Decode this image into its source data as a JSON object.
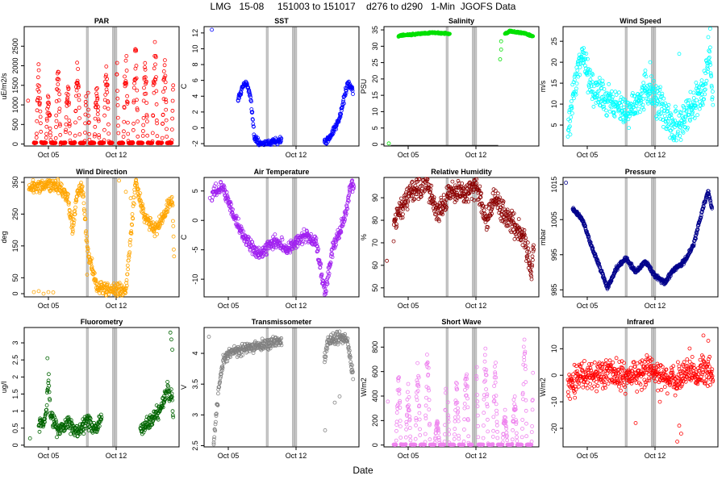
{
  "title": "LMG   15-08     151003 to 151017    d276 to d290   1-Min  JGOFS Data",
  "xlabel": "Date",
  "chart_data": [
    {
      "type": "scatter",
      "title": "PAR",
      "ylabel": "uE/m2/s",
      "color": "#ff0000",
      "ylim": [
        -50,
        3000
      ],
      "yticks": [
        0,
        500,
        1000,
        1500,
        2000,
        2500
      ],
      "xticks": [
        "Oct 05",
        "Oct 12"
      ],
      "pattern": "diurnal",
      "params": {
        "peaks": [
          2050,
          1350,
          2000,
          1800,
          2550,
          2000,
          1650,
          2400,
          2950,
          2500,
          2700,
          2200,
          2800,
          2200
        ],
        "base": 20
      }
    },
    {
      "type": "scatter",
      "title": "SST",
      "ylabel": "C",
      "color": "#0000ff",
      "ylim": [
        -2.3,
        12.8
      ],
      "yticks": [
        -2,
        0,
        2,
        4,
        6,
        8,
        10,
        12
      ],
      "xticks": [
        "Oct 12"
      ],
      "pattern": "series",
      "params": {
        "knots": [
          [
            3.5,
            3.6
          ],
          [
            4.0,
            5.2
          ],
          [
            4.4,
            5.8
          ],
          [
            4.8,
            4.0
          ],
          [
            5.2,
            -1.2
          ],
          [
            5.6,
            -1.9
          ],
          [
            6.2,
            -2.0
          ],
          [
            7.0,
            -1.9
          ],
          [
            7.7,
            -1.6
          ],
          [
            8.0,
            -1.5
          ],
          [
            null
          ],
          [
            12.4,
            -1.8
          ],
          [
            13.0,
            -1.3
          ],
          [
            14.0,
            1.2
          ],
          [
            14.8,
            5.5
          ],
          [
            15.3,
            5.0
          ],
          [
            15.4,
            4.2
          ]
        ],
        "noise": 0.35,
        "outliers": [
          [
            0.8,
            12.4
          ]
        ]
      }
    },
    {
      "type": "scatter",
      "title": "Salinity",
      "ylabel": "PSU",
      "color": "#00e000",
      "ylim": [
        -0.5,
        36
      ],
      "yticks": [
        0,
        5,
        10,
        15,
        20,
        25,
        30,
        35
      ],
      "xticks": [
        "Oct 05",
        "Oct 12"
      ],
      "pattern": "series",
      "params": {
        "knots": [
          [
            1.5,
            33.2
          ],
          [
            3.0,
            33.6
          ],
          [
            5.0,
            34.2
          ],
          [
            6.5,
            33.9
          ],
          [
            6.8,
            33.8
          ],
          [
            null
          ],
          [
            12.5,
            33.8
          ],
          [
            13.0,
            34.6
          ],
          [
            14.5,
            34.0
          ],
          [
            15.4,
            33.0
          ]
        ],
        "noise": 0.2,
        "outliers": [
          [
            0.5,
            0.3
          ],
          [
            12.0,
            26.0
          ],
          [
            12.1,
            29.0
          ],
          [
            12.1,
            31.5
          ]
        ],
        "gapLine": [
          [
            0.7,
            -0.3
          ],
          [
            11.8,
            -0.3
          ]
        ]
      }
    },
    {
      "type": "scatter",
      "title": "Wind Speed",
      "ylabel": "m/s",
      "color": "#00ffff",
      "ylim": [
        0,
        28.5
      ],
      "yticks": [
        5,
        10,
        15,
        20,
        25
      ],
      "xticks": [
        "Oct 05",
        "Oct 12"
      ],
      "pattern": "series",
      "params": {
        "knots": [
          [
            0.5,
            3
          ],
          [
            1.5,
            18
          ],
          [
            2.0,
            22
          ],
          [
            3.0,
            14
          ],
          [
            4.0,
            12
          ],
          [
            5.5,
            10
          ],
          [
            6.5,
            8
          ],
          [
            7.5,
            10
          ],
          [
            8.5,
            14
          ],
          [
            9.5,
            12
          ],
          [
            10.5,
            8
          ],
          [
            11.5,
            4
          ],
          [
            12.5,
            6
          ],
          [
            13.5,
            10
          ],
          [
            14.5,
            14
          ],
          [
            15.2,
            22
          ],
          [
            15.5,
            10
          ]
        ],
        "noise": 3.5,
        "outliers": [
          [
            15.2,
            28
          ],
          [
            15.0,
            26
          ],
          [
            8.5,
            18
          ],
          [
            9.0,
            20
          ],
          [
            12.0,
            22
          ]
        ]
      }
    },
    {
      "type": "scatter",
      "title": "Wind Direction",
      "ylabel": "deg",
      "color": "#ffa500",
      "ylim": [
        -10,
        365
      ],
      "yticks": [
        0,
        50,
        150,
        250,
        350
      ],
      "xticks": [
        "Oct 05",
        "Oct 12"
      ],
      "pattern": "series",
      "params": {
        "knots": [
          [
            0.5,
            330
          ],
          [
            2.0,
            345
          ],
          [
            3.5,
            340
          ],
          [
            4.5,
            300
          ],
          [
            5.0,
            200
          ],
          [
            5.5,
            320
          ],
          [
            6.0,
            340
          ],
          [
            6.5,
            150
          ],
          [
            7.0,
            80
          ],
          [
            7.5,
            20
          ],
          [
            8.5,
            10
          ],
          [
            9.5,
            15
          ],
          [
            10.5,
            10
          ],
          [
            11.5,
            350
          ],
          [
            12.5,
            240
          ],
          [
            13.5,
            200
          ],
          [
            14.5,
            250
          ],
          [
            15.3,
            300
          ],
          [
            15.5,
            100
          ]
        ],
        "noise": 18,
        "outliers": [
          [
            1.0,
            5
          ],
          [
            1.5,
            8
          ],
          [
            2.0,
            0
          ],
          [
            2.5,
            5
          ],
          [
            3.0,
            4
          ],
          [
            10.5,
            320
          ],
          [
            11.0,
            300
          ],
          [
            9.8,
            355
          ],
          [
            6.5,
            60
          ],
          [
            7.0,
            110
          ]
        ]
      }
    },
    {
      "type": "scatter",
      "title": "Air Temperature",
      "ylabel": "C",
      "color": "#a020f0",
      "ylim": [
        -13,
        7.3
      ],
      "yticks": [
        -10,
        -5,
        0,
        5
      ],
      "xticks": [
        "Oct 05",
        "Oct 12"
      ],
      "pattern": "series",
      "params": {
        "knots": [
          [
            0.8,
            4.5
          ],
          [
            1.2,
            5.0
          ],
          [
            2.0,
            5.6
          ],
          [
            3.0,
            1.0
          ],
          [
            4.0,
            -2.5
          ],
          [
            5.0,
            -4.5
          ],
          [
            5.8,
            -6.0
          ],
          [
            6.5,
            -4.5
          ],
          [
            7.5,
            -3.5
          ],
          [
            8.5,
            -5.0
          ],
          [
            9.5,
            -3.5
          ],
          [
            10.5,
            -2.5
          ],
          [
            11.5,
            -3.5
          ],
          [
            12.0,
            -8.0
          ],
          [
            12.5,
            -12.5
          ],
          [
            13.3,
            -5.0
          ],
          [
            14.0,
            -2.0
          ],
          [
            14.6,
            1.0
          ],
          [
            15.2,
            6.5
          ],
          [
            15.5,
            5.5
          ]
        ],
        "noise": 0.9,
        "outliers": [
          [
            0.6,
            3.8
          ]
        ]
      }
    },
    {
      "type": "scatter",
      "title": "Relative Humidity",
      "ylabel": "%",
      "color": "#8b0000",
      "ylim": [
        46,
        99
      ],
      "yticks": [
        50,
        60,
        70,
        80,
        90
      ],
      "xticks": [
        "Oct 05",
        "Oct 12"
      ],
      "pattern": "series",
      "params": {
        "knots": [
          [
            1.0,
            76
          ],
          [
            1.6,
            85
          ],
          [
            2.5,
            90
          ],
          [
            3.5,
            95
          ],
          [
            4.5,
            96
          ],
          [
            5.5,
            82
          ],
          [
            6.5,
            90
          ],
          [
            7.5,
            94
          ],
          [
            8.5,
            92
          ],
          [
            9.5,
            96
          ],
          [
            10.5,
            80
          ],
          [
            11.5,
            90
          ],
          [
            12.5,
            82
          ],
          [
            13.5,
            78
          ],
          [
            14.5,
            72
          ],
          [
            15.2,
            55
          ],
          [
            15.5,
            72
          ]
        ],
        "noise": 4.5,
        "outliers": [
          [
            0.3,
            62
          ]
        ]
      }
    },
    {
      "type": "scatter",
      "title": "Pressure",
      "ylabel": "mbar",
      "color": "#00008b",
      "ylim": [
        983,
        1017
      ],
      "yticks": [
        985,
        995,
        1005,
        1015
      ],
      "xticks": [
        "Oct 05",
        "Oct 12"
      ],
      "pattern": "series",
      "params": {
        "knots": [
          [
            1.0,
            1008
          ],
          [
            2.0,
            1005
          ],
          [
            3.0,
            997
          ],
          [
            4.0,
            990
          ],
          [
            4.6,
            985.5
          ],
          [
            5.5,
            991
          ],
          [
            6.5,
            994
          ],
          [
            7.5,
            990
          ],
          [
            8.5,
            993
          ],
          [
            9.5,
            989
          ],
          [
            10.5,
            987
          ],
          [
            11.5,
            991
          ],
          [
            12.5,
            993
          ],
          [
            13.5,
            998
          ],
          [
            14.5,
            1009
          ],
          [
            15.0,
            1013
          ],
          [
            15.4,
            1008
          ]
        ],
        "noise": 0.5,
        "outliers": [
          [
            0.3,
            1015.5
          ]
        ]
      }
    },
    {
      "type": "scatter",
      "title": "Fluorometry",
      "ylabel": "ug/l",
      "color": "#006400",
      "ylim": [
        -0.05,
        3.45
      ],
      "yticks": [
        0.0,
        0.5,
        1.0,
        1.5,
        2.0,
        2.5,
        3.0
      ],
      "xticks": [
        "Oct 05",
        "Oct 12"
      ],
      "pattern": "series",
      "params": {
        "knots": [
          [
            1.5,
            0.55
          ],
          [
            2.2,
            0.8
          ],
          [
            2.5,
            2.0
          ],
          [
            2.7,
            0.9
          ],
          [
            3.5,
            0.4
          ],
          [
            4.5,
            0.7
          ],
          [
            5.5,
            0.35
          ],
          [
            6.5,
            0.7
          ],
          [
            7.5,
            0.45
          ],
          [
            8.0,
            0.85
          ],
          [
            null
          ],
          [
            12.0,
            0.5
          ],
          [
            13.0,
            0.7
          ],
          [
            14.0,
            1.0
          ],
          [
            14.8,
            1.6
          ],
          [
            15.3,
            1.4
          ],
          [
            15.4,
            0.7
          ]
        ],
        "noise": 0.18,
        "outliers": [
          [
            0.6,
            0.2
          ],
          [
            15.1,
            3.3
          ],
          [
            15.2,
            3.1
          ],
          [
            15.3,
            2.8
          ],
          [
            2.4,
            2.55
          ]
        ]
      }
    },
    {
      "type": "scatter",
      "title": "Transmissometer",
      "ylabel": "V",
      "color": "#808080",
      "ylim": [
        2.48,
        4.42
      ],
      "yticks": [
        2.5,
        3.0,
        3.5,
        4.0
      ],
      "xticks": [
        "Oct 05",
        "Oct 12"
      ],
      "pattern": "series",
      "params": {
        "knots": [
          [
            1.0,
            2.6
          ],
          [
            1.5,
            3.4
          ],
          [
            2.0,
            3.9
          ],
          [
            2.5,
            4.0
          ],
          [
            3.5,
            4.05
          ],
          [
            5.0,
            4.1
          ],
          [
            6.5,
            4.15
          ],
          [
            8.0,
            4.2
          ],
          [
            null
          ],
          [
            12.4,
            3.9
          ],
          [
            12.8,
            4.2
          ],
          [
            14.0,
            4.25
          ],
          [
            14.8,
            4.2
          ],
          [
            15.4,
            3.6
          ]
        ],
        "noise": 0.08,
        "outliers": [
          [
            0.5,
            4.27
          ],
          [
            12.5,
            2.75
          ],
          [
            13.5,
            3.2
          ],
          [
            14.0,
            3.3
          ],
          [
            1.0,
            2.55
          ]
        ]
      }
    },
    {
      "type": "scatter",
      "title": "Short Wave",
      "ylabel": "W/m2",
      "color": "#ee82ee",
      "ylim": [
        -15,
        960
      ],
      "yticks": [
        0,
        200,
        400,
        600,
        800
      ],
      "xticks": [
        "Oct 05",
        "Oct 12"
      ],
      "pattern": "diurnal",
      "params": {
        "peaks": [
          600,
          500,
          700,
          870,
          200,
          650,
          550,
          700,
          800,
          850,
          700,
          300,
          450,
          880
        ],
        "base": 2
      }
    },
    {
      "type": "scatter",
      "title": "Infrared",
      "ylabel": "W/m2",
      "color": "#ff0000",
      "ylim": [
        -27,
        18
      ],
      "yticks": [
        -20,
        -10,
        0,
        10
      ],
      "xticks": [
        "Oct 05",
        "Oct 12"
      ],
      "pattern": "series",
      "params": {
        "knots": [
          [
            0.5,
            -3
          ],
          [
            1.5,
            -1
          ],
          [
            3.0,
            0
          ],
          [
            4.5,
            1
          ],
          [
            6.0,
            -1
          ],
          [
            7.5,
            0
          ],
          [
            9.0,
            2
          ],
          [
            10.5,
            -1
          ],
          [
            12.0,
            -2
          ],
          [
            13.0,
            3
          ],
          [
            14.0,
            0
          ],
          [
            15.0,
            2
          ],
          [
            15.5,
            0
          ]
        ],
        "noise": 4.5,
        "outliers": [
          [
            11.8,
            -25
          ],
          [
            12.2,
            -22
          ],
          [
            12.0,
            -19
          ],
          [
            14.5,
            15
          ],
          [
            15.0,
            13
          ],
          [
            7.5,
            -18
          ],
          [
            10.0,
            -10
          ]
        ]
      }
    }
  ]
}
